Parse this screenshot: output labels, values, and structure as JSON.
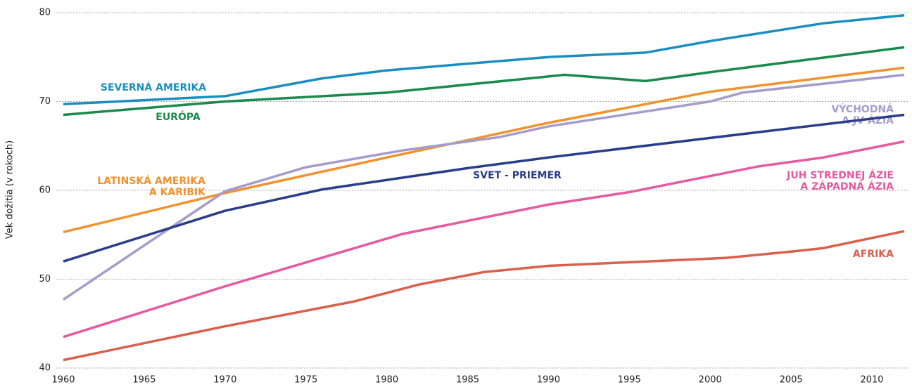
{
  "chart_data": {
    "type": "line",
    "y_label": "Vek dožitia (v rokoch)",
    "xlim": [
      1960,
      2012
    ],
    "xticks": [
      1960,
      1965,
      1970,
      1975,
      1980,
      1985,
      1990,
      1995,
      2000,
      2005,
      2010
    ],
    "ylim": [
      40,
      80
    ],
    "yticks": [
      40,
      50,
      60,
      70,
      80
    ],
    "grid": true,
    "series": [
      {
        "name": [
          "SEVERNÁ AMERIKA"
        ],
        "color": "#1a8fbf",
        "x": [
          1960,
          1970,
          1976,
          1980,
          1990,
          1996,
          2000,
          2007,
          2012
        ],
        "values": [
          69.7,
          70.6,
          72.6,
          73.5,
          75.0,
          75.5,
          76.8,
          78.8,
          79.7
        ]
      },
      {
        "name": [
          "EURÓPA"
        ],
        "color": "#1a8a4e",
        "x": [
          1960,
          1970,
          1980,
          1991,
          1996,
          2000,
          2012
        ],
        "values": [
          68.5,
          70.0,
          71.0,
          73.0,
          72.3,
          73.3,
          76.1
        ]
      },
      {
        "name": [
          "LATINSKÁ AMERIKA",
          "A KARIBIK"
        ],
        "color": "#f0922e",
        "x": [
          1960,
          1970,
          1980,
          1990,
          2000,
          2012
        ],
        "values": [
          55.3,
          59.7,
          63.7,
          67.6,
          71.1,
          73.8
        ]
      },
      {
        "name": [
          "VÝCHODNÁ",
          "A JV ÁZIA"
        ],
        "color": "#a59ccc",
        "x": [
          1960,
          1970,
          1975,
          1981,
          1987,
          1990,
          2000,
          2002,
          2012
        ],
        "values": [
          47.7,
          59.9,
          62.6,
          64.5,
          66.0,
          67.2,
          70.0,
          71.0,
          73.0
        ]
      },
      {
        "name": [
          "SVET - PRIEMER"
        ],
        "color": "#2a3d8a",
        "x": [
          1960,
          1970,
          1976,
          1985,
          1990,
          2000,
          2012
        ],
        "values": [
          52.0,
          57.7,
          60.1,
          62.5,
          63.7,
          65.9,
          68.5
        ]
      },
      {
        "name": [
          "JUH STREDNEJ ÁZIE",
          "A ZÁPADNÁ ÁZIA"
        ],
        "color": "#e65aa0",
        "x": [
          1960,
          1970,
          1981,
          1990,
          1995,
          2003,
          2007,
          2012
        ],
        "values": [
          43.5,
          49.2,
          55.1,
          58.4,
          59.8,
          62.7,
          63.7,
          65.5
        ]
      },
      {
        "name": [
          "AFRIKA"
        ],
        "color": "#d9604c",
        "x": [
          1960,
          1970,
          1978,
          1982,
          1986,
          1990,
          2001,
          2005,
          2007,
          2012
        ],
        "values": [
          40.9,
          44.7,
          47.5,
          49.4,
          50.8,
          51.5,
          52.4,
          53.1,
          53.5,
          55.4
        ]
      }
    ]
  }
}
